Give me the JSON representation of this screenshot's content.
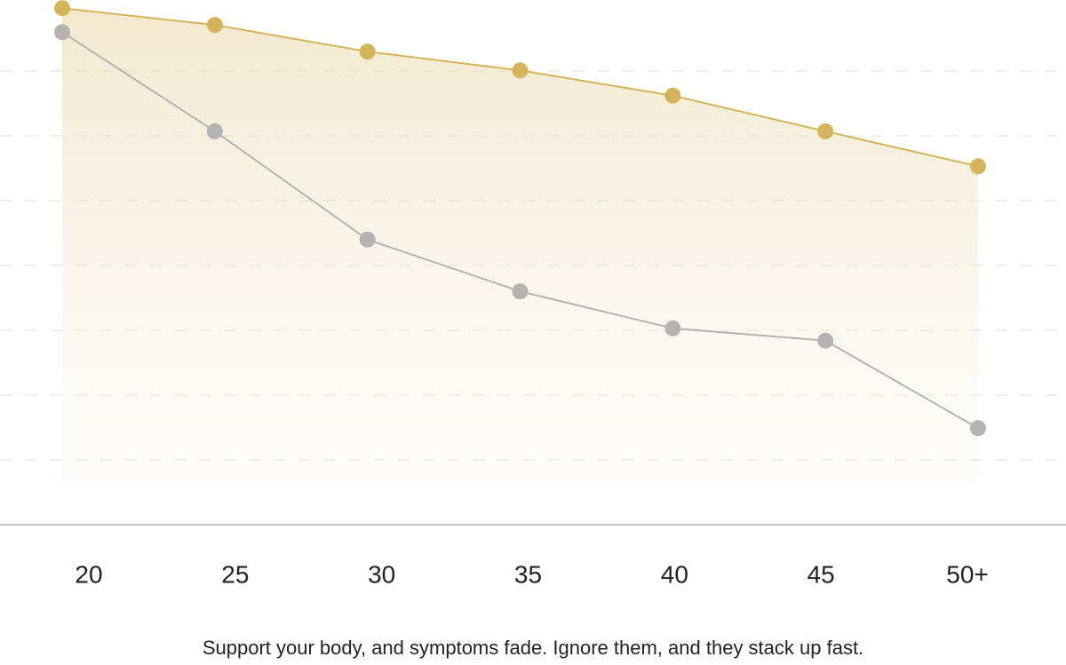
{
  "chart_data": {
    "type": "line",
    "categories": [
      "20",
      "25",
      "30",
      "35",
      "40",
      "45",
      "50+"
    ],
    "series": [
      {
        "color": "#d4b45a",
        "values": [
          7.97,
          7.71,
          7.3,
          7.01,
          6.62,
          6.07,
          5.53
        ]
      },
      {
        "color": "#b5b3b2",
        "values": [
          7.6,
          6.07,
          4.4,
          3.6,
          3.03,
          2.84,
          1.49
        ]
      }
    ],
    "ylim": [
      0,
      8
    ],
    "yticks": [
      1,
      2,
      3,
      4,
      5,
      6,
      7
    ],
    "grid": true,
    "caption": "Support your body, and symptoms fade. Ignore them, and they stack up fast."
  }
}
